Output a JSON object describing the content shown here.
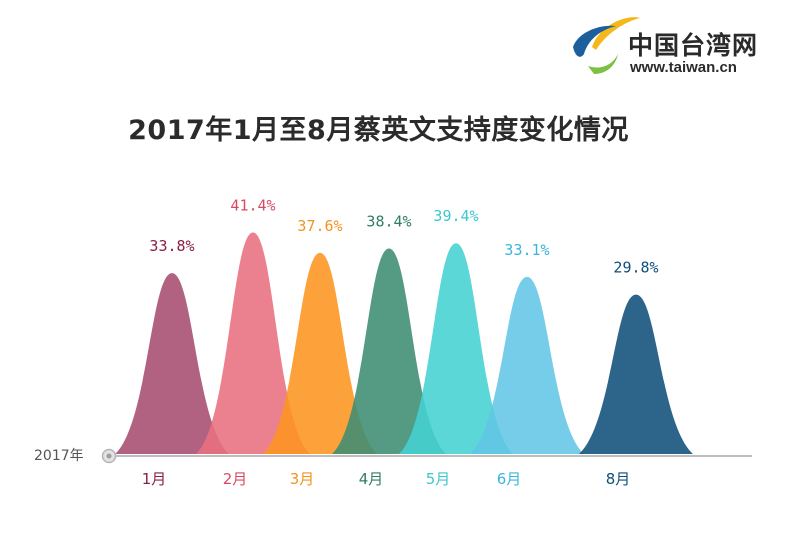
{
  "logo": {
    "name_cn": "中国台湾网",
    "url": "www.taiwan.cn",
    "icon": "taiwan-net-logo-icon",
    "colors": {
      "yellow": "#f5b81c",
      "blue": "#1d5f9c",
      "green": "#7cc242"
    }
  },
  "chart_data": {
    "type": "area",
    "title": "2017年1月至8月蔡英文支持度变化情况",
    "axis_label": "2017年",
    "ylim": [
      0,
      45
    ],
    "value_suffix": "%",
    "points": [
      {
        "label": "1月",
        "value": 33.8,
        "display": "33.8%",
        "color": "#a64c6e",
        "label_color": "#8a1f47"
      },
      {
        "label": "2月",
        "value": 41.4,
        "display": "41.4%",
        "color": "#e8707f",
        "label_color": "#d94a62"
      },
      {
        "label": "3月",
        "value": 37.6,
        "display": "37.6%",
        "color": "#fd9420",
        "label_color": "#f39320"
      },
      {
        "label": "4月",
        "value": 38.4,
        "display": "38.4%",
        "color": "#3e8c72",
        "label_color": "#2f7d62"
      },
      {
        "label": "5月",
        "value": 39.4,
        "display": "39.4%",
        "color": "#44d1d1",
        "label_color": "#3cc7cf"
      },
      {
        "label": "6月",
        "value": 33.1,
        "display": "33.1%",
        "color": "#62c6e6",
        "label_color": "#3ab5dc"
      },
      {
        "label": "8月",
        "value": 29.8,
        "display": "29.8%",
        "color": "#0f4e7a",
        "label_color": "#0f4e7a"
      }
    ]
  }
}
